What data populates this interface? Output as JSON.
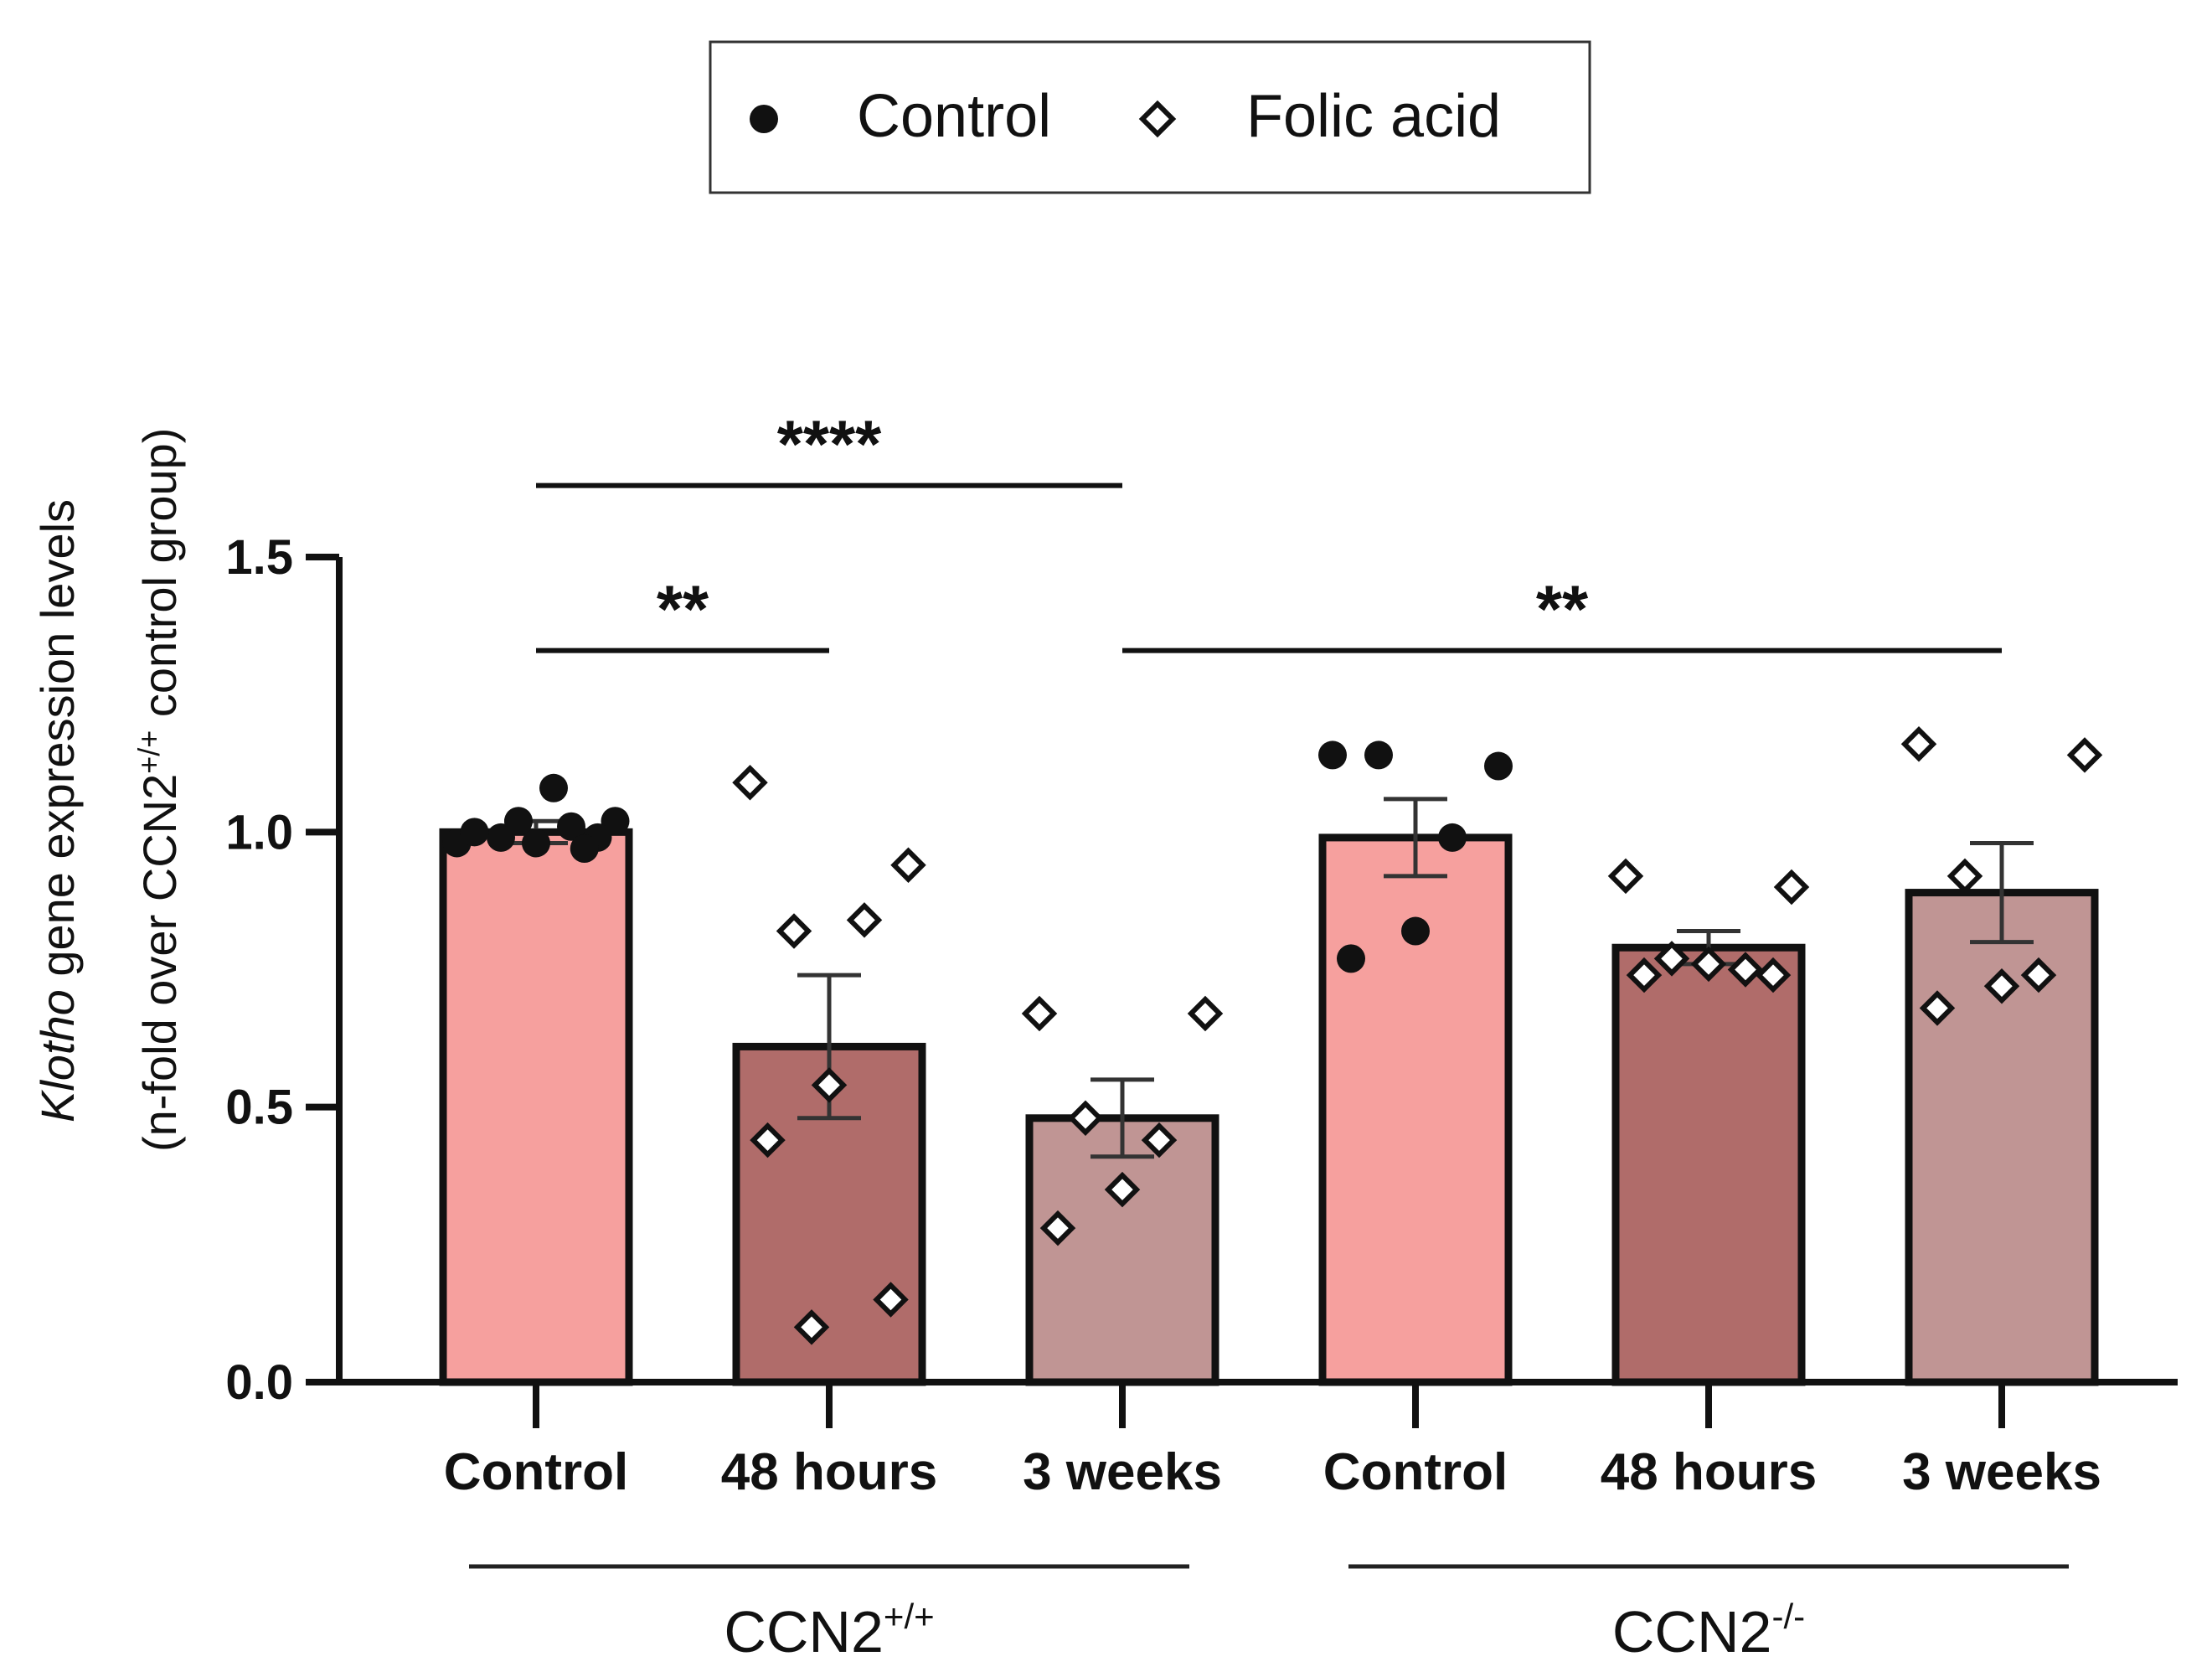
{
  "chart_data": {
    "type": "bar",
    "ylabel": {
      "gene": "Klotho",
      "line1_rest": " gene expression levels",
      "line2_pre": "(n-fold over CCN2",
      "line2_sup": "+/+",
      "line2_post": " control group)"
    },
    "ylim": [
      0,
      1.5
    ],
    "yticks": [
      "0.0",
      "0.5",
      "1.0",
      "1.5"
    ],
    "legend": [
      {
        "label": "Control",
        "marker": "filled-circle"
      },
      {
        "label": "Folic acid",
        "marker": "open-diamond"
      }
    ],
    "categories": [
      "Control",
      "48 hours",
      "3 weeks",
      "Control",
      "48 hours",
      "3 weeks"
    ],
    "groups": [
      {
        "base": "CCN2",
        "sup": "+/+",
        "categories": [
          0,
          1,
          2
        ]
      },
      {
        "base": "CCN2",
        "sup": "-/-",
        "categories": [
          3,
          4,
          5
        ]
      }
    ],
    "colors": {
      "control": "#f6a09e",
      "hours48": "#b06c6a",
      "weeks3": "#c09594",
      "outline": "#111111"
    },
    "series": [
      {
        "name": "CCN2+/+ Control",
        "mean": 1.0,
        "sem": 0.02,
        "marker": "filled-circle",
        "color": "control",
        "points": [
          0.98,
          1.02,
          0.99,
          1.01,
          0.98,
          1.0,
          0.99,
          1.02,
          1.08,
          0.97
        ]
      },
      {
        "name": "CCN2+/+ 48 hours",
        "mean": 0.61,
        "sem": 0.13,
        "marker": "open-diamond",
        "color": "hours48",
        "points": [
          1.09,
          0.94,
          0.82,
          0.84,
          0.54,
          0.44,
          0.15,
          0.1
        ]
      },
      {
        "name": "CCN2+/+ 3 weeks",
        "mean": 0.48,
        "sem": 0.07,
        "marker": "open-diamond",
        "color": "weeks3",
        "points": [
          0.67,
          0.67,
          0.48,
          0.44,
          0.35,
          0.28
        ]
      },
      {
        "name": "CCN2-/- Control",
        "mean": 0.99,
        "sem": 0.07,
        "marker": "filled-circle",
        "color": "control",
        "points": [
          1.14,
          1.12,
          1.14,
          0.99,
          0.82,
          0.77
        ]
      },
      {
        "name": "CCN2-/- 48 hours",
        "mean": 0.79,
        "sem": 0.03,
        "marker": "open-diamond",
        "color": "hours48",
        "points": [
          0.92,
          0.9,
          0.77,
          0.75,
          0.76,
          0.74,
          0.74
        ]
      },
      {
        "name": "CCN2-/- 3 weeks",
        "mean": 0.89,
        "sem": 0.09,
        "marker": "open-diamond",
        "color": "weeks3",
        "points": [
          1.16,
          1.14,
          0.92,
          0.74,
          0.72,
          0.68
        ]
      }
    ],
    "significance": [
      {
        "from": 0,
        "to": 2,
        "y": 1.63,
        "label": "****"
      },
      {
        "from": 0,
        "to": 1,
        "y": 1.33,
        "label": "**"
      },
      {
        "from": 2,
        "to": 5,
        "y": 1.33,
        "label": "**"
      }
    ]
  }
}
